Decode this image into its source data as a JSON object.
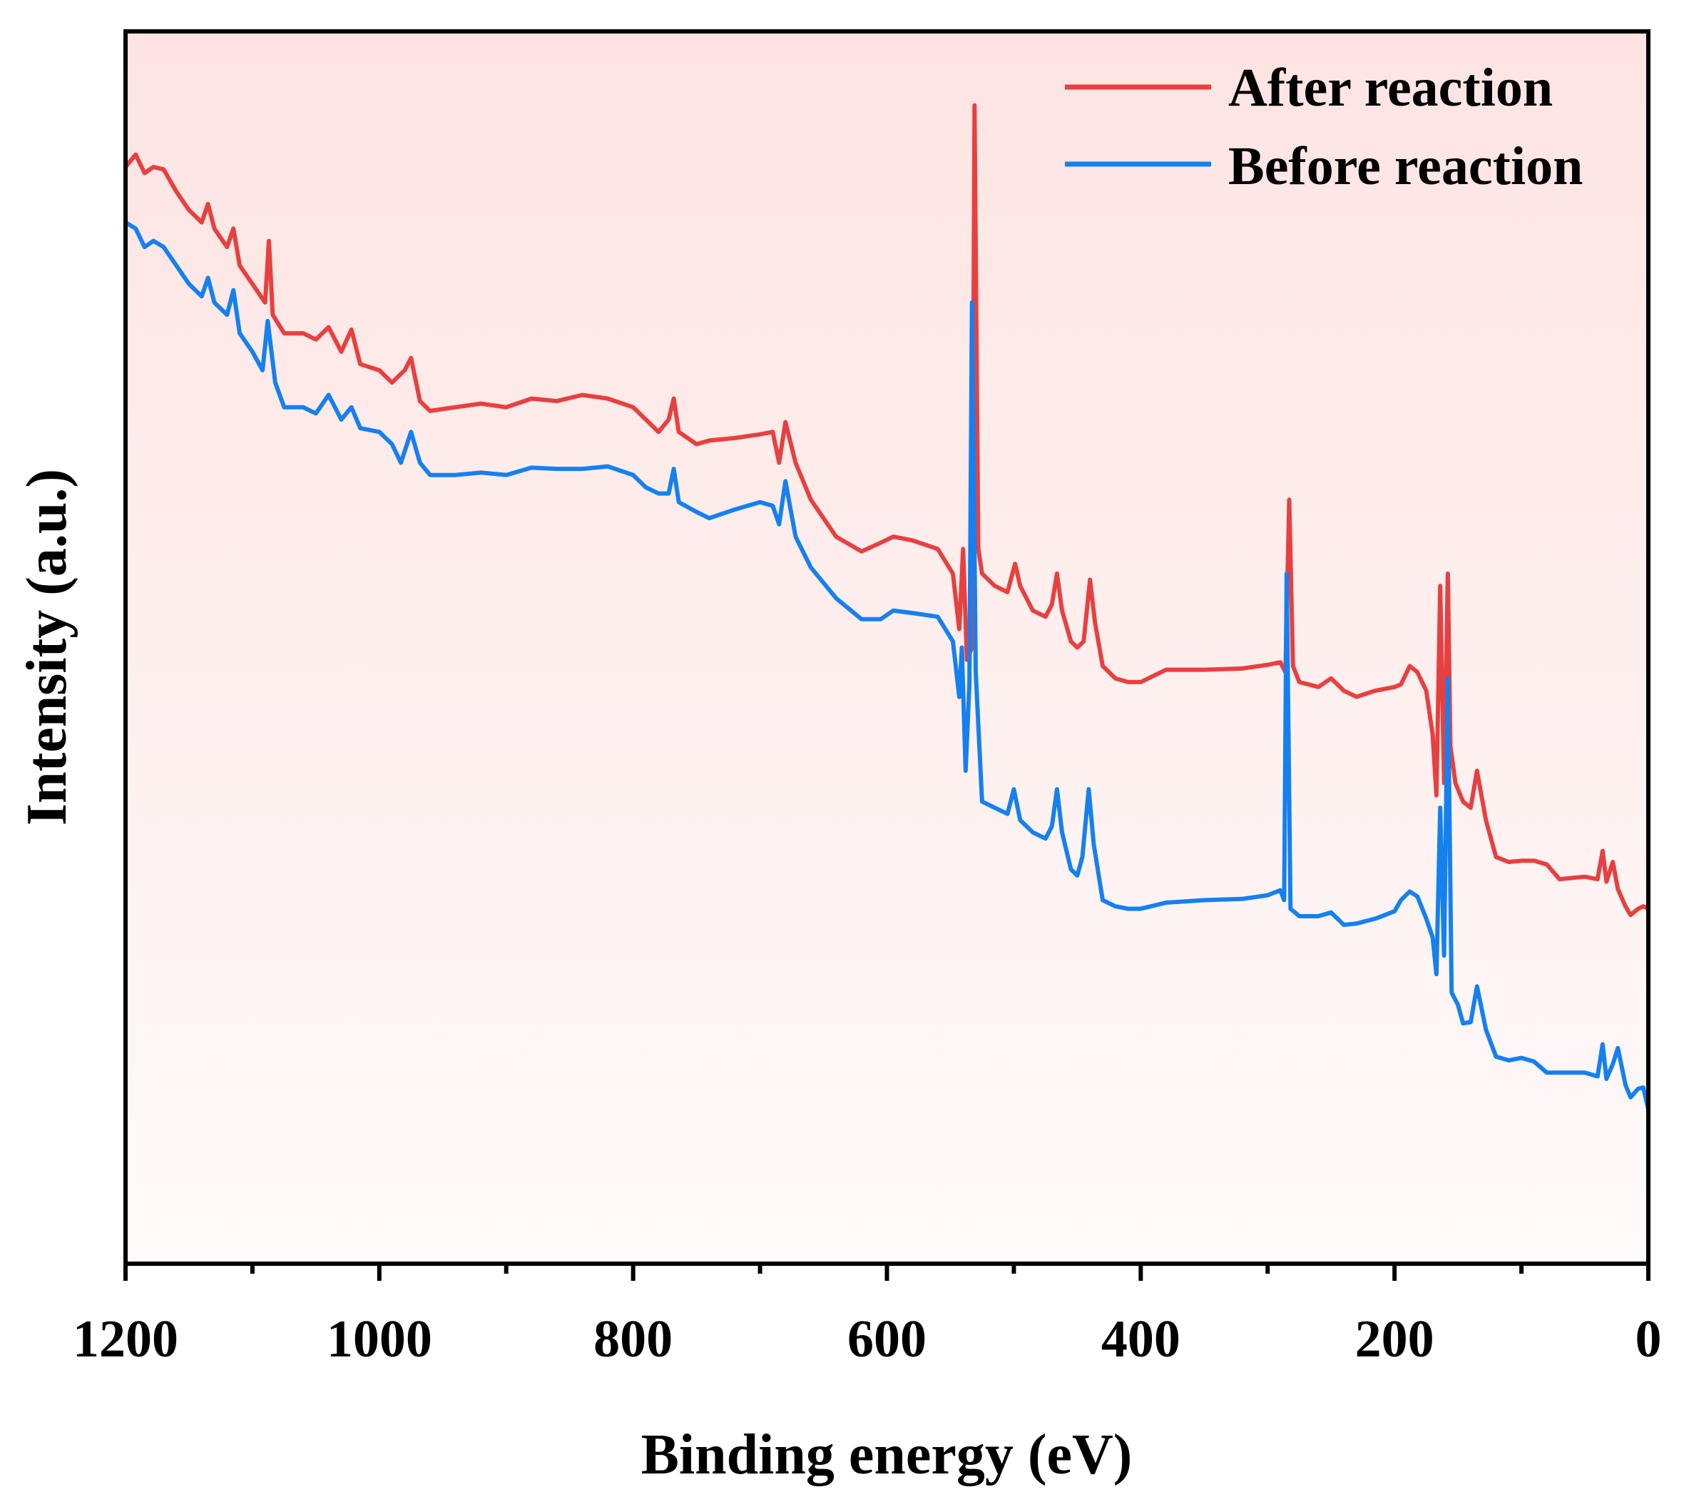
{
  "chart_data": {
    "type": "line",
    "title": "",
    "xlabel": "Binding energy (eV)",
    "ylabel": "Intensity (a.u.)",
    "xlim": [
      1200,
      0
    ],
    "ylim": [
      0,
      100
    ],
    "x_ticks": [
      1200,
      1000,
      800,
      600,
      400,
      200,
      0
    ],
    "x_tick_labels": [
      "1200",
      "1000",
      "800",
      "600",
      "400",
      "200",
      "0"
    ],
    "x_minor_ticks": [
      1100,
      900,
      700,
      500,
      300,
      100
    ],
    "y_ticks": [],
    "grid": false,
    "legend_position": "top-right",
    "background_gradient": [
      "#fde4e2",
      "#fffafa"
    ],
    "series": [
      {
        "name": "After reaction",
        "color": "#e84040",
        "points": [
          [
            1200,
            89
          ],
          [
            1192,
            90
          ],
          [
            1185,
            88.5
          ],
          [
            1178,
            89
          ],
          [
            1170,
            88.8
          ],
          [
            1160,
            87
          ],
          [
            1150,
            85.5
          ],
          [
            1140,
            84.5
          ],
          [
            1135,
            86
          ],
          [
            1130,
            84
          ],
          [
            1120,
            82.5
          ],
          [
            1115,
            84
          ],
          [
            1110,
            81
          ],
          [
            1100,
            79.5
          ],
          [
            1090,
            78
          ],
          [
            1087,
            83
          ],
          [
            1084,
            77
          ],
          [
            1075,
            75.5
          ],
          [
            1060,
            75.5
          ],
          [
            1050,
            75
          ],
          [
            1040,
            76
          ],
          [
            1030,
            74
          ],
          [
            1022,
            75.8
          ],
          [
            1015,
            73
          ],
          [
            1000,
            72.5
          ],
          [
            990,
            71.5
          ],
          [
            980,
            72.5
          ],
          [
            975,
            73.5
          ],
          [
            968,
            70
          ],
          [
            960,
            69.2
          ],
          [
            940,
            69.5
          ],
          [
            920,
            69.8
          ],
          [
            900,
            69.5
          ],
          [
            880,
            70.2
          ],
          [
            860,
            70
          ],
          [
            840,
            70.5
          ],
          [
            820,
            70.2
          ],
          [
            800,
            69.5
          ],
          [
            790,
            68.5
          ],
          [
            780,
            67.5
          ],
          [
            772,
            68.5
          ],
          [
            768,
            70.2
          ],
          [
            764,
            67.5
          ],
          [
            750,
            66.5
          ],
          [
            740,
            66.8
          ],
          [
            720,
            67
          ],
          [
            700,
            67.3
          ],
          [
            690,
            67.5
          ],
          [
            685,
            65
          ],
          [
            680,
            68.3
          ],
          [
            672,
            65
          ],
          [
            660,
            62
          ],
          [
            640,
            59
          ],
          [
            620,
            57.8
          ],
          [
            605,
            58.5
          ],
          [
            595,
            59
          ],
          [
            580,
            58.7
          ],
          [
            560,
            58
          ],
          [
            548,
            56
          ],
          [
            543,
            51.5
          ],
          [
            540,
            58
          ],
          [
            537,
            49
          ],
          [
            533,
            50
          ],
          [
            531,
            94
          ],
          [
            528,
            58
          ],
          [
            525,
            56
          ],
          [
            515,
            55
          ],
          [
            505,
            54.5
          ],
          [
            499,
            56.8
          ],
          [
            495,
            55
          ],
          [
            485,
            53
          ],
          [
            475,
            52.5
          ],
          [
            470,
            53.5
          ],
          [
            466,
            56
          ],
          [
            462,
            53
          ],
          [
            455,
            50.5
          ],
          [
            450,
            50
          ],
          [
            445,
            50.5
          ],
          [
            440,
            55.5
          ],
          [
            436,
            52
          ],
          [
            430,
            48.5
          ],
          [
            420,
            47.5
          ],
          [
            410,
            47.2
          ],
          [
            400,
            47.2
          ],
          [
            380,
            48.2
          ],
          [
            350,
            48.2
          ],
          [
            320,
            48.3
          ],
          [
            300,
            48.6
          ],
          [
            290,
            48.8
          ],
          [
            286,
            48
          ],
          [
            283,
            62
          ],
          [
            280,
            48.5
          ],
          [
            275,
            47.2
          ],
          [
            260,
            46.8
          ],
          [
            250,
            47.5
          ],
          [
            240,
            46.5
          ],
          [
            230,
            46
          ],
          [
            215,
            46.5
          ],
          [
            200,
            46.8
          ],
          [
            195,
            47
          ],
          [
            188,
            48.5
          ],
          [
            182,
            48
          ],
          [
            175,
            46.5
          ],
          [
            170,
            43
          ],
          [
            167,
            38
          ],
          [
            164,
            55
          ],
          [
            161,
            39
          ],
          [
            158,
            56
          ],
          [
            156,
            42
          ],
          [
            152,
            39
          ],
          [
            146,
            37.5
          ],
          [
            140,
            37
          ],
          [
            135,
            40
          ],
          [
            128,
            36
          ],
          [
            120,
            33
          ],
          [
            110,
            32.6
          ],
          [
            100,
            32.7
          ],
          [
            90,
            32.7
          ],
          [
            80,
            32.4
          ],
          [
            70,
            31.2
          ],
          [
            60,
            31.3
          ],
          [
            50,
            31.4
          ],
          [
            40,
            31.2
          ],
          [
            36,
            33.5
          ],
          [
            33,
            31
          ],
          [
            28,
            32.6
          ],
          [
            24,
            30.4
          ],
          [
            18,
            29
          ],
          [
            14,
            28.3
          ],
          [
            8,
            28.8
          ],
          [
            4,
            29
          ],
          [
            0,
            28.8
          ]
        ]
      },
      {
        "name": "Before reaction",
        "color": "#1580f0",
        "points": [
          [
            1200,
            84.5
          ],
          [
            1192,
            84
          ],
          [
            1185,
            82.5
          ],
          [
            1178,
            83
          ],
          [
            1170,
            82.5
          ],
          [
            1160,
            81
          ],
          [
            1150,
            79.5
          ],
          [
            1140,
            78.5
          ],
          [
            1135,
            80
          ],
          [
            1130,
            78
          ],
          [
            1120,
            77
          ],
          [
            1115,
            79
          ],
          [
            1110,
            75.5
          ],
          [
            1100,
            74
          ],
          [
            1092,
            72.5
          ],
          [
            1088,
            76.5
          ],
          [
            1082,
            71.5
          ],
          [
            1075,
            69.5
          ],
          [
            1060,
            69.5
          ],
          [
            1050,
            69
          ],
          [
            1040,
            70.5
          ],
          [
            1030,
            68.5
          ],
          [
            1022,
            69.5
          ],
          [
            1015,
            67.8
          ],
          [
            1000,
            67.5
          ],
          [
            990,
            66.5
          ],
          [
            983,
            65
          ],
          [
            975,
            67.5
          ],
          [
            968,
            65
          ],
          [
            960,
            64
          ],
          [
            940,
            64
          ],
          [
            920,
            64.2
          ],
          [
            900,
            64
          ],
          [
            880,
            64.6
          ],
          [
            860,
            64.5
          ],
          [
            840,
            64.5
          ],
          [
            820,
            64.7
          ],
          [
            800,
            64
          ],
          [
            790,
            63
          ],
          [
            780,
            62.5
          ],
          [
            772,
            62.5
          ],
          [
            768,
            64.5
          ],
          [
            764,
            61.8
          ],
          [
            750,
            61
          ],
          [
            740,
            60.5
          ],
          [
            720,
            61.2
          ],
          [
            700,
            61.8
          ],
          [
            690,
            61.5
          ],
          [
            685,
            60
          ],
          [
            680,
            63.5
          ],
          [
            672,
            59
          ],
          [
            660,
            56.5
          ],
          [
            640,
            54
          ],
          [
            620,
            52.3
          ],
          [
            605,
            52.3
          ],
          [
            595,
            53
          ],
          [
            580,
            52.8
          ],
          [
            560,
            52.5
          ],
          [
            548,
            50.5
          ],
          [
            543,
            46
          ],
          [
            541,
            50
          ],
          [
            538,
            40
          ],
          [
            535,
            47
          ],
          [
            533,
            78
          ],
          [
            530,
            48
          ],
          [
            525,
            37.5
          ],
          [
            515,
            37
          ],
          [
            505,
            36.5
          ],
          [
            500,
            38.5
          ],
          [
            495,
            36
          ],
          [
            485,
            35
          ],
          [
            475,
            34.5
          ],
          [
            470,
            35.5
          ],
          [
            466,
            38.5
          ],
          [
            462,
            35
          ],
          [
            455,
            32
          ],
          [
            450,
            31.5
          ],
          [
            446,
            33
          ],
          [
            441,
            38.5
          ],
          [
            437,
            34
          ],
          [
            430,
            29.5
          ],
          [
            420,
            29
          ],
          [
            410,
            28.8
          ],
          [
            400,
            28.8
          ],
          [
            380,
            29.3
          ],
          [
            350,
            29.5
          ],
          [
            320,
            29.6
          ],
          [
            300,
            29.9
          ],
          [
            290,
            30.3
          ],
          [
            287,
            29.5
          ],
          [
            285,
            56
          ],
          [
            282,
            28.8
          ],
          [
            275,
            28.2
          ],
          [
            260,
            28.2
          ],
          [
            250,
            28.5
          ],
          [
            240,
            27.5
          ],
          [
            230,
            27.6
          ],
          [
            215,
            28
          ],
          [
            200,
            28.6
          ],
          [
            195,
            29.5
          ],
          [
            188,
            30.2
          ],
          [
            182,
            29.8
          ],
          [
            175,
            28
          ],
          [
            170,
            26.5
          ],
          [
            167,
            23.5
          ],
          [
            164,
            37
          ],
          [
            161,
            25
          ],
          [
            158,
            47.5
          ],
          [
            155,
            22
          ],
          [
            150,
            21
          ],
          [
            146,
            19.5
          ],
          [
            140,
            19.6
          ],
          [
            135,
            22.5
          ],
          [
            128,
            19
          ],
          [
            120,
            16.8
          ],
          [
            110,
            16.5
          ],
          [
            100,
            16.7
          ],
          [
            90,
            16.4
          ],
          [
            80,
            15.5
          ],
          [
            70,
            15.5
          ],
          [
            60,
            15.5
          ],
          [
            50,
            15.5
          ],
          [
            40,
            15.2
          ],
          [
            36,
            17.8
          ],
          [
            33,
            15
          ],
          [
            28,
            16.2
          ],
          [
            24,
            17.5
          ],
          [
            18,
            14.5
          ],
          [
            14,
            13.5
          ],
          [
            8,
            14.2
          ],
          [
            4,
            14.3
          ],
          [
            0,
            12.5
          ]
        ]
      }
    ]
  }
}
